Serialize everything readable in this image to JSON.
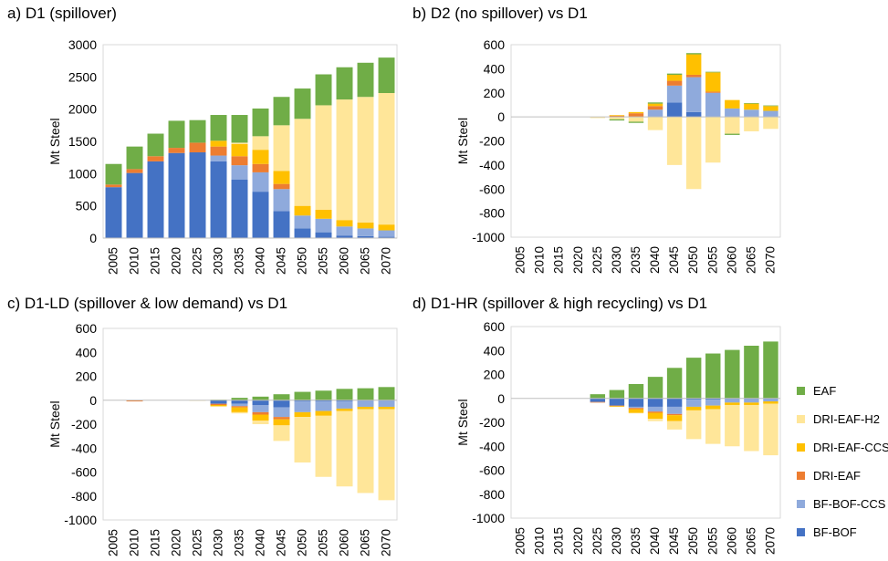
{
  "colors": {
    "EAF": "#70AD47",
    "DRI-EAF-H2": "#FFE699",
    "DRI-EAF-CCS": "#FFC000",
    "DRI-EAF": "#ED7D31",
    "BF-BOF-CCS": "#8FAADC",
    "BF-BOF": "#4472C4"
  },
  "legend": {
    "items": [
      "EAF",
      "DRI-EAF-H2",
      "DRI-EAF-CCS",
      "DRI-EAF",
      "BF-BOF-CCS",
      "BF-BOF"
    ]
  },
  "chart_data": [
    {
      "type": "bar",
      "stacked": true,
      "title": "a) D1 (spillover)",
      "xlabel": "",
      "ylabel": "Mt Steel",
      "ylim": [
        0,
        3000
      ],
      "yticks": [
        0,
        500,
        1000,
        1500,
        2000,
        2500,
        3000
      ],
      "categories": [
        "2005",
        "2010",
        "2015",
        "2020",
        "2025",
        "2030",
        "2035",
        "2040",
        "2045",
        "2050",
        "2055",
        "2060",
        "2065",
        "2070"
      ],
      "series": [
        {
          "name": "BF-BOF",
          "values": [
            790,
            1010,
            1190,
            1320,
            1330,
            1190,
            910,
            720,
            420,
            150,
            90,
            40,
            30,
            20
          ]
        },
        {
          "name": "BF-BOF-CCS",
          "values": [
            0,
            0,
            0,
            0,
            0,
            90,
            220,
            300,
            340,
            200,
            210,
            140,
            120,
            100
          ]
        },
        {
          "name": "DRI-EAF",
          "values": [
            40,
            60,
            80,
            80,
            150,
            140,
            140,
            130,
            80,
            0,
            0,
            0,
            0,
            0
          ]
        },
        {
          "name": "DRI-EAF-CCS",
          "values": [
            0,
            0,
            0,
            0,
            0,
            90,
            190,
            220,
            200,
            150,
            140,
            100,
            90,
            90
          ]
        },
        {
          "name": "DRI-EAF-H2",
          "values": [
            0,
            0,
            0,
            0,
            0,
            0,
            20,
            210,
            710,
            1350,
            1620,
            1870,
            1950,
            2040
          ]
        },
        {
          "name": "EAF",
          "values": [
            320,
            350,
            350,
            420,
            350,
            400,
            430,
            430,
            440,
            470,
            480,
            500,
            530,
            550
          ]
        }
      ]
    },
    {
      "type": "bar",
      "stacked": true,
      "title": "b) D2 (no spillover) vs D1",
      "xlabel": "",
      "ylabel": "Mt Steel",
      "ylim": [
        -1000,
        600
      ],
      "yticks": [
        -1000,
        -800,
        -600,
        -400,
        -200,
        0,
        200,
        400,
        600
      ],
      "categories": [
        "2005",
        "2010",
        "2015",
        "2020",
        "2025",
        "2030",
        "2035",
        "2040",
        "2045",
        "2050",
        "2055",
        "2060",
        "2065",
        "2070"
      ],
      "series": [
        {
          "name": "BF-BOF",
          "values": [
            0,
            0,
            0,
            0,
            0,
            0,
            0,
            0,
            120,
            40,
            0,
            0,
            0,
            0
          ]
        },
        {
          "name": "BF-BOF-CCS",
          "values": [
            0,
            0,
            0,
            0,
            0,
            0,
            0,
            60,
            140,
            290,
            200,
            70,
            60,
            50
          ]
        },
        {
          "name": "DRI-EAF",
          "values": [
            0,
            0,
            0,
            0,
            0,
            10,
            30,
            30,
            40,
            20,
            10,
            0,
            0,
            0
          ]
        },
        {
          "name": "DRI-EAF-CCS",
          "values": [
            0,
            0,
            0,
            0,
            0,
            5,
            10,
            20,
            50,
            170,
            160,
            70,
            50,
            40
          ]
        },
        {
          "name": "DRI-EAF-H2",
          "values": [
            0,
            0,
            0,
            0,
            -10,
            -20,
            -40,
            -110,
            -400,
            -600,
            -380,
            -140,
            -120,
            -100
          ]
        },
        {
          "name": "EAF",
          "values": [
            0,
            0,
            0,
            0,
            0,
            -10,
            -10,
            10,
            10,
            10,
            5,
            -10,
            5,
            5
          ]
        }
      ]
    },
    {
      "type": "bar",
      "stacked": true,
      "title": "c) D1-LD (spillover & low demand) vs D1",
      "xlabel": "",
      "ylabel": "Mt Steel",
      "ylim": [
        -1000,
        600
      ],
      "yticks": [
        -1000,
        -800,
        -600,
        -400,
        -200,
        0,
        200,
        400,
        600
      ],
      "categories": [
        "2005",
        "2010",
        "2015",
        "2020",
        "2025",
        "2030",
        "2035",
        "2040",
        "2045",
        "2050",
        "2055",
        "2060",
        "2065",
        "2070"
      ],
      "series": [
        {
          "name": "BF-BOF",
          "values": [
            0,
            0,
            0,
            0,
            0,
            -30,
            -30,
            -40,
            -60,
            -10,
            -10,
            -10,
            -5,
            -5
          ]
        },
        {
          "name": "BF-BOF-CCS",
          "values": [
            0,
            0,
            0,
            0,
            0,
            0,
            -20,
            -60,
            -80,
            -90,
            -80,
            -60,
            -50,
            -50
          ]
        },
        {
          "name": "DRI-EAF",
          "values": [
            0,
            -10,
            0,
            0,
            0,
            -10,
            -10,
            -20,
            -20,
            0,
            0,
            0,
            0,
            0
          ]
        },
        {
          "name": "DRI-EAF-CCS",
          "values": [
            0,
            0,
            0,
            0,
            0,
            -10,
            -40,
            -50,
            -50,
            -40,
            -40,
            -20,
            -20,
            -20
          ]
        },
        {
          "name": "DRI-EAF-H2",
          "values": [
            0,
            0,
            0,
            0,
            -5,
            -5,
            -10,
            -30,
            -130,
            -380,
            -510,
            -630,
            -700,
            -760
          ]
        },
        {
          "name": "EAF",
          "values": [
            0,
            0,
            0,
            0,
            0,
            5,
            20,
            30,
            50,
            70,
            80,
            95,
            100,
            110
          ]
        }
      ]
    },
    {
      "type": "bar",
      "stacked": true,
      "title": "d) D1-HR (spillover & high recycling) vs D1",
      "xlabel": "",
      "ylabel": "Mt Steel",
      "ylim": [
        -1000,
        600
      ],
      "yticks": [
        -1000,
        -800,
        -600,
        -400,
        -200,
        0,
        200,
        400,
        600
      ],
      "categories": [
        "2005",
        "2010",
        "2015",
        "2020",
        "2025",
        "2030",
        "2035",
        "2040",
        "2045",
        "2050",
        "2055",
        "2060",
        "2065",
        "2070"
      ],
      "series": [
        {
          "name": "BF-BOF",
          "values": [
            0,
            0,
            0,
            0,
            -30,
            -60,
            -70,
            -70,
            -70,
            -10,
            -10,
            -5,
            -5,
            -5
          ]
        },
        {
          "name": "BF-BOF-CCS",
          "values": [
            0,
            0,
            0,
            0,
            0,
            0,
            -10,
            -40,
            -60,
            -60,
            -50,
            -30,
            -30,
            -20
          ]
        },
        {
          "name": "DRI-EAF",
          "values": [
            0,
            0,
            0,
            0,
            -5,
            -5,
            -10,
            -10,
            -10,
            0,
            0,
            0,
            0,
            0
          ]
        },
        {
          "name": "DRI-EAF-CCS",
          "values": [
            0,
            0,
            0,
            0,
            0,
            -5,
            -30,
            -50,
            -50,
            -30,
            -30,
            -20,
            -20,
            -20
          ]
        },
        {
          "name": "DRI-EAF-H2",
          "values": [
            0,
            0,
            0,
            0,
            0,
            0,
            -5,
            -20,
            -70,
            -240,
            -290,
            -345,
            -385,
            -430
          ]
        },
        {
          "name": "EAF",
          "values": [
            0,
            0,
            0,
            0,
            35,
            70,
            120,
            180,
            255,
            340,
            375,
            405,
            440,
            475
          ]
        }
      ]
    }
  ]
}
